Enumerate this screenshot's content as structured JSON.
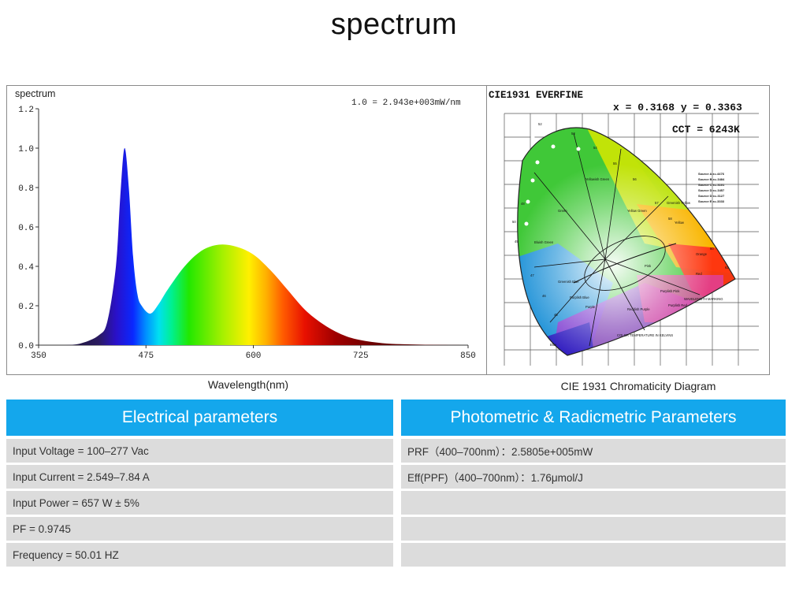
{
  "page": {
    "title": "spectrum"
  },
  "spectrum_panel": {
    "caption": "Wavelength(nm)",
    "scale_note": "1.0 = 2.943e+003mW/nm"
  },
  "cie_panel": {
    "caption": "CIE 1931 Chromaticity Diagram",
    "header": "CIE1931   EVERFINE",
    "xy": "x = 0.3168 y = 0.3363",
    "cct": "CCT = 6243K",
    "wavelength_marks": [
      "52",
      "53",
      "54",
      "55",
      "56",
      "57",
      "58",
      "60",
      "62",
      "48",
      "49",
      "50",
      "47",
      "46",
      "45"
    ],
    "region_labels": [
      "Green",
      "Yellowish Green",
      "Yellow Green",
      "Greenish Yellow",
      "Yellow",
      "Bluish Green",
      "Orange",
      "Red",
      "Pink",
      "Purplish Pink",
      "Purplish Blue",
      "Blue",
      "Purple",
      "Reddish Purple",
      "Purplish Red",
      "Greenish Blue"
    ],
    "notes": [
      "COLOR TEMPERATURE IN KELVINS",
      "WAVELENGTH MARKING"
    ],
    "sources": [
      "Source A x=.4476",
      "Source B x=.3484",
      "Source C x=.3101",
      "Source D x=.3457",
      "Source D x=.3127",
      "Source E x=.3333"
    ]
  },
  "chart_data": {
    "type": "area",
    "title": "spectrum",
    "xlabel": "Wavelength(nm)",
    "ylabel": "spectrum",
    "xlim": [
      350,
      850
    ],
    "ylim": [
      0,
      1.2
    ],
    "xticks": [
      350,
      475,
      600,
      725,
      850
    ],
    "yticks": [
      0.0,
      0.2,
      0.4,
      0.6,
      0.8,
      1.0,
      1.2
    ],
    "ytick_labels": [
      "0.0",
      "0.2",
      "0.4",
      "0.6",
      "0.8",
      "1.0",
      "1.2"
    ],
    "fill": "visible-spectrum gradient",
    "x": [
      350,
      380,
      400,
      420,
      430,
      440,
      445,
      450,
      455,
      460,
      465,
      470,
      480,
      490,
      500,
      520,
      540,
      560,
      580,
      600,
      620,
      640,
      660,
      680,
      700,
      720,
      750,
      780,
      820,
      850
    ],
    "y": [
      0.0,
      0.0,
      0.01,
      0.05,
      0.12,
      0.4,
      0.75,
      1.0,
      0.8,
      0.45,
      0.26,
      0.2,
      0.16,
      0.21,
      0.28,
      0.4,
      0.48,
      0.51,
      0.5,
      0.46,
      0.38,
      0.28,
      0.18,
      0.11,
      0.06,
      0.03,
      0.01,
      0.004,
      0.001,
      0.0
    ]
  },
  "electrical": {
    "header": "Electrical parameters",
    "rows": [
      "Input Voltage  = 100–277 Vac",
      "Input Current = 2.549–7.84 A",
      "Input Power  = 657 W ± 5%",
      "PF  = 0.9745",
      "Frequency = 50.01 HZ"
    ]
  },
  "photometric": {
    "header": "Photometric & Radicmetric Parameters",
    "rows": [
      "PRF（400–700nm）：2.5805e+005mW",
      "Eff(PPF)（400–700nm）：1.76μmol/J",
      "",
      "",
      ""
    ]
  }
}
